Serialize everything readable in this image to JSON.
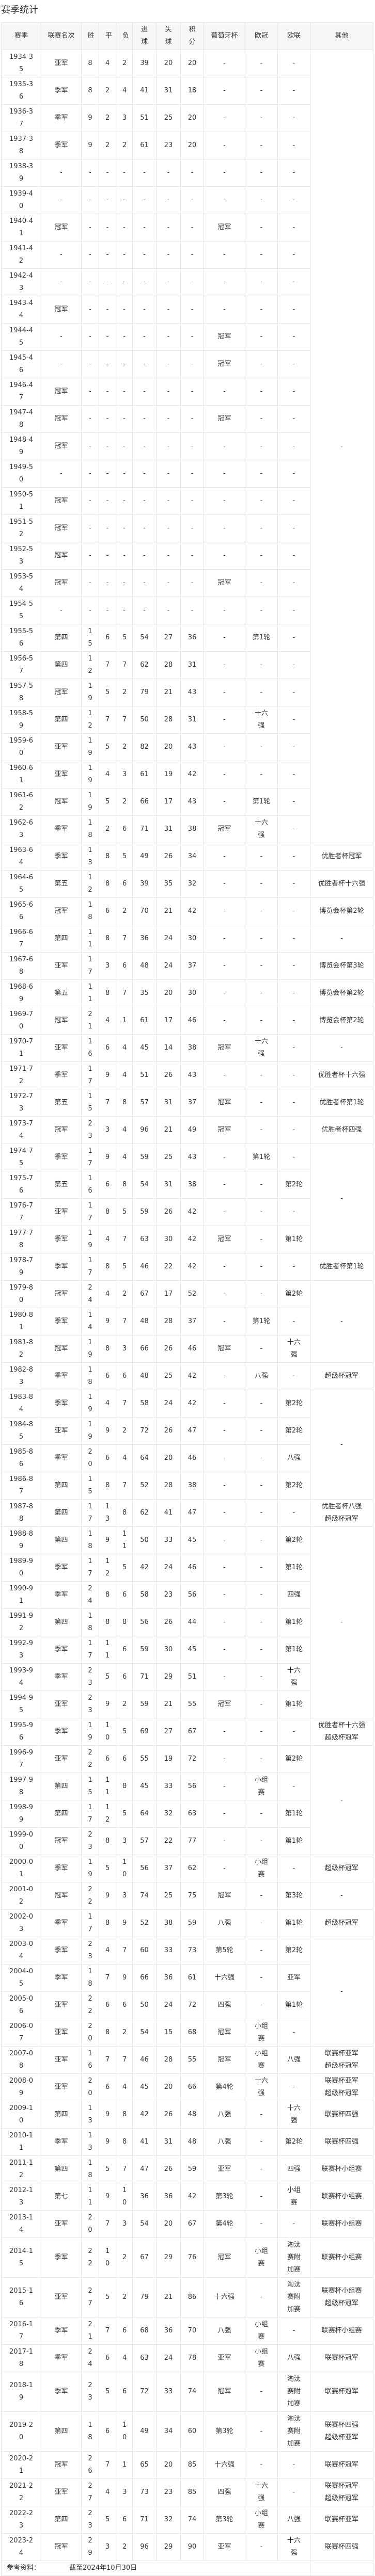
{
  "page_title": "赛季统计",
  "columns": [
    "赛季",
    "联赛名次",
    "胜",
    "平",
    "负",
    "进球",
    "失球",
    "积分",
    "葡萄牙杯",
    "欧冠",
    "欧联",
    "其他"
  ],
  "rows": [
    [
      "1934-35",
      "亚军",
      "8",
      "4",
      "2",
      "39",
      "20",
      "20",
      "-",
      "-",
      "-",
      [
        "-"
      ]
    ],
    [
      "1935-36",
      "季军",
      "8",
      "2",
      "4",
      "41",
      "31",
      "18",
      "-",
      "-",
      "-",
      null
    ],
    [
      "1936-37",
      "季军",
      "9",
      "2",
      "3",
      "51",
      "25",
      "20",
      "-",
      "-",
      "-",
      null
    ],
    [
      "1937-38",
      "季军",
      "9",
      "2",
      "2",
      "61",
      "23",
      "20",
      "-",
      "-",
      "-",
      null
    ],
    [
      "1938-39",
      "-",
      "-",
      "-",
      "-",
      "-",
      "-",
      "-",
      "-",
      "-",
      "-",
      null
    ],
    [
      "1939-40",
      "-",
      "-",
      "-",
      "-",
      "-",
      "-",
      "-",
      "-",
      "-",
      "-",
      null
    ],
    [
      "1940-41",
      "冠军",
      "-",
      "-",
      "-",
      "-",
      "-",
      "-",
      "冠军",
      "-",
      "-",
      null
    ],
    [
      "1941-42",
      "-",
      "-",
      "-",
      "-",
      "-",
      "-",
      "-",
      "-",
      "-",
      "-",
      null
    ],
    [
      "1942-43",
      "-",
      "-",
      "-",
      "-",
      "-",
      "-",
      "-",
      "-",
      "-",
      "-",
      null
    ],
    [
      "1943-44",
      "冠军",
      "-",
      "-",
      "-",
      "-",
      "-",
      "-",
      "-",
      "-",
      "-",
      null
    ],
    [
      "1944-45",
      "-",
      "-",
      "-",
      "-",
      "-",
      "-",
      "-",
      "冠军",
      "-",
      "-",
      null
    ],
    [
      "1945-46",
      "-",
      "-",
      "-",
      "-",
      "-",
      "-",
      "-",
      "冠军",
      "-",
      "-",
      null
    ],
    [
      "1946-47",
      "冠军",
      "-",
      "-",
      "-",
      "-",
      "-",
      "-",
      "-",
      "-",
      "-",
      null
    ],
    [
      "1947-48",
      "冠军",
      "-",
      "-",
      "-",
      "-",
      "-",
      "-",
      "冠军",
      "-",
      "-",
      null
    ],
    [
      "1948-49",
      "冠军",
      "-",
      "-",
      "-",
      "-",
      "-",
      "-",
      "-",
      "-",
      "-",
      null
    ],
    [
      "1949-50",
      "-",
      "-",
      "-",
      "-",
      "-",
      "-",
      "-",
      "-",
      "-",
      "-",
      null
    ],
    [
      "1950-51",
      "冠军",
      "-",
      "-",
      "-",
      "-",
      "-",
      "-",
      "-",
      "-",
      "-",
      null
    ],
    [
      "1951-52",
      "冠军",
      "-",
      "-",
      "-",
      "-",
      "-",
      "-",
      "-",
      "-",
      "-",
      null
    ],
    [
      "1952-53",
      "冠军",
      "-",
      "-",
      "-",
      "-",
      "-",
      "-",
      "-",
      "-",
      "-",
      null
    ],
    [
      "1953-54",
      "冠军",
      "-",
      "-",
      "-",
      "-",
      "-",
      "-",
      "冠军",
      "-",
      "-",
      null
    ],
    [
      "1954-55",
      "-",
      "-",
      "-",
      "-",
      "-",
      "-",
      "-",
      "-",
      "-",
      "-",
      null
    ],
    [
      "1955-56",
      "第四",
      "15",
      "6",
      "5",
      "54",
      "27",
      "36",
      "-",
      "第1轮",
      "-",
      null
    ],
    [
      "1956-57",
      "第四",
      "12",
      "7",
      "7",
      "62",
      "28",
      "31",
      "-",
      "-",
      "-",
      null
    ],
    [
      "1957-58",
      "冠军",
      "19",
      "5",
      "2",
      "79",
      "21",
      "43",
      "-",
      "-",
      "-",
      null
    ],
    [
      "1958-59",
      "第四",
      "12",
      "7",
      "7",
      "50",
      "28",
      "31",
      "-",
      "十六强",
      "-",
      null
    ],
    [
      "1959-60",
      "亚军",
      "19",
      "5",
      "2",
      "82",
      "20",
      "43",
      "-",
      "-",
      "-",
      null
    ],
    [
      "1960-61",
      "亚军",
      "19",
      "4",
      "3",
      "61",
      "19",
      "42",
      "-",
      "-",
      "-",
      null
    ],
    [
      "1961-62",
      "冠军",
      "19",
      "5",
      "2",
      "66",
      "17",
      "43",
      "-",
      "第1轮",
      "-",
      null
    ],
    [
      "1962-63",
      "季军",
      "18",
      "2",
      "6",
      "71",
      "31",
      "38",
      "冠军",
      "十六强",
      "-",
      null
    ],
    [
      "1963-64",
      "季军",
      "13",
      "8",
      "5",
      "49",
      "26",
      "34",
      "-",
      "-",
      "-",
      [
        "优胜者杯冠军"
      ]
    ],
    [
      "1964-65",
      "第五",
      "12",
      "8",
      "6",
      "39",
      "35",
      "32",
      "-",
      "-",
      "-",
      [
        "优胜者杯十六强"
      ]
    ],
    [
      "1965-66",
      "冠军",
      "18",
      "6",
      "2",
      "70",
      "21",
      "42",
      "-",
      "-",
      "-",
      [
        "博览会杯第2轮"
      ]
    ],
    [
      "1966-67",
      "第四",
      "11",
      "8",
      "7",
      "36",
      "24",
      "30",
      "-",
      "-",
      "-",
      [
        "-"
      ]
    ],
    [
      "1967-68",
      "亚军",
      "17",
      "3",
      "6",
      "48",
      "24",
      "37",
      "-",
      "-",
      "-",
      [
        "博览会杯第3轮"
      ]
    ],
    [
      "1968-69",
      "第五",
      "11",
      "8",
      "7",
      "35",
      "20",
      "30",
      "-",
      "-",
      "-",
      [
        "博览会杯第2轮"
      ]
    ],
    [
      "1969-70",
      "冠军",
      "21",
      "4",
      "1",
      "61",
      "17",
      "46",
      "-",
      "-",
      "-",
      [
        "博览会杯第2轮"
      ]
    ],
    [
      "1970-71",
      "亚军",
      "16",
      "6",
      "4",
      "45",
      "14",
      "38",
      "冠军",
      "十六强",
      "-",
      [
        "-"
      ]
    ],
    [
      "1971-72",
      "季军",
      "17",
      "9",
      "4",
      "51",
      "26",
      "43",
      "-",
      "-",
      "-",
      [
        "优胜者杯十六强"
      ]
    ],
    [
      "1972-73",
      "第五",
      "15",
      "7",
      "8",
      "57",
      "31",
      "37",
      "冠军",
      "-",
      "-",
      [
        "优胜者杯第1轮"
      ]
    ],
    [
      "1973-74",
      "冠军",
      "23",
      "3",
      "4",
      "96",
      "21",
      "49",
      "冠军",
      "-",
      "-",
      [
        "优胜者杯四强"
      ]
    ],
    [
      "1974-75",
      "季军",
      "17",
      "9",
      "4",
      "59",
      "25",
      "43",
      "-",
      "第1轮",
      "-",
      [
        "-"
      ]
    ],
    [
      "1975-76",
      "第五",
      "16",
      "6",
      "8",
      "54",
      "31",
      "38",
      "-",
      "-",
      "第2轮",
      null
    ],
    [
      "1976-77",
      "亚军",
      "17",
      "8",
      "5",
      "59",
      "26",
      "42",
      "-",
      "-",
      "-",
      null
    ],
    [
      "1977-78",
      "季军",
      "19",
      "4",
      "7",
      "63",
      "30",
      "42",
      "冠军",
      "-",
      "第1轮",
      null
    ],
    [
      "1978-79",
      "季军",
      "17",
      "8",
      "5",
      "46",
      "22",
      "42",
      "-",
      "-",
      "-",
      [
        "优胜者杯第1轮"
      ]
    ],
    [
      "1979-80",
      "冠军",
      "24",
      "4",
      "2",
      "67",
      "17",
      "52",
      "-",
      "-",
      "第2轮",
      [
        "-"
      ]
    ],
    [
      "1980-81",
      "季军",
      "14",
      "9",
      "7",
      "48",
      "28",
      "37",
      "-",
      "第1轮",
      "-",
      null
    ],
    [
      "1981-82",
      "冠军",
      "19",
      "8",
      "3",
      "66",
      "26",
      "46",
      "冠军",
      "-",
      "十六强",
      null
    ],
    [
      "1982-83",
      "季军",
      "18",
      "6",
      "6",
      "48",
      "25",
      "42",
      "-",
      "八强",
      "-",
      [
        "超级杯冠军"
      ]
    ],
    [
      "1983-84",
      "季军",
      "19",
      "4",
      "7",
      "58",
      "24",
      "42",
      "-",
      "-",
      "第2轮",
      [
        "-"
      ]
    ],
    [
      "1984-85",
      "亚军",
      "19",
      "9",
      "2",
      "72",
      "26",
      "47",
      "-",
      "-",
      "第2轮",
      null
    ],
    [
      "1985-86",
      "季军",
      "20",
      "6",
      "4",
      "64",
      "20",
      "46",
      "-",
      "-",
      "八强",
      null
    ],
    [
      "1986-87",
      "第四",
      "15",
      "8",
      "7",
      "52",
      "28",
      "38",
      "-",
      "-",
      "第2轮",
      null
    ],
    [
      "1987-88",
      "第四",
      "17",
      "13",
      "8",
      "62",
      "41",
      "47",
      "-",
      "-",
      "-",
      [
        "优胜者杯八强",
        "超级杯冠军"
      ]
    ],
    [
      "1988-89",
      "第四",
      "18",
      "9",
      "11",
      "50",
      "33",
      "45",
      "-",
      "-",
      "第2轮",
      [
        "-"
      ]
    ],
    [
      "1989-90",
      "季军",
      "17",
      "12",
      "5",
      "42",
      "24",
      "46",
      "-",
      "-",
      "第1轮",
      null
    ],
    [
      "1990-91",
      "季军",
      "24",
      "8",
      "6",
      "58",
      "23",
      "56",
      "-",
      "-",
      "四强",
      null
    ],
    [
      "1991-92",
      "第四",
      "18",
      "8",
      "8",
      "56",
      "26",
      "44",
      "-",
      "-",
      "第1轮",
      null
    ],
    [
      "1992-93",
      "季军",
      "17",
      "11",
      "6",
      "59",
      "30",
      "45",
      "-",
      "-",
      "第1轮",
      null
    ],
    [
      "1993-94",
      "季军",
      "23",
      "5",
      "6",
      "71",
      "29",
      "51",
      "-",
      "-",
      "十六强",
      null
    ],
    [
      "1994-95",
      "亚军",
      "23",
      "9",
      "2",
      "59",
      "21",
      "55",
      "冠军",
      "-",
      "第1轮",
      null
    ],
    [
      "1995-96",
      "季军",
      "19",
      "10",
      "5",
      "69",
      "27",
      "67",
      "-",
      "-",
      "-",
      [
        "优胜者杯十六强",
        "超级杯冠军"
      ]
    ],
    [
      "1996-97",
      "亚军",
      "22",
      "6",
      "6",
      "55",
      "19",
      "72",
      "-",
      "-",
      "第2轮",
      [
        "-"
      ]
    ],
    [
      "1997-98",
      "第四",
      "15",
      "11",
      "8",
      "45",
      "33",
      "56",
      "-",
      "小组赛",
      "-",
      null
    ],
    [
      "1998-99",
      "第四",
      "17",
      "12",
      "5",
      "64",
      "32",
      "63",
      "-",
      "-",
      "第1轮",
      null
    ],
    [
      "1999-00",
      "冠军",
      "23",
      "8",
      "3",
      "57",
      "22",
      "77",
      "-",
      "-",
      "第1轮",
      null
    ],
    [
      "2000-01",
      "季军",
      "19",
      "5",
      "10",
      "56",
      "37",
      "62",
      "-",
      "小组赛",
      "-",
      [
        "超级杯冠军"
      ]
    ],
    [
      "2001-02",
      "冠军",
      "22",
      "9",
      "3",
      "74",
      "25",
      "75",
      "冠军",
      "-",
      "第3轮",
      [
        "-"
      ]
    ],
    [
      "2002-03",
      "季军",
      "17",
      "8",
      "9",
      "52",
      "38",
      "59",
      "八强",
      "-",
      "第1轮",
      [
        "超级杯冠军"
      ]
    ],
    [
      "2003-04",
      "季军",
      "23",
      "4",
      "7",
      "60",
      "33",
      "73",
      "第5轮",
      "-",
      "第2轮",
      [
        "-"
      ]
    ],
    [
      "2004-05",
      "季军",
      "18",
      "7",
      "9",
      "66",
      "36",
      "61",
      "十六强",
      "-",
      "亚军",
      null
    ],
    [
      "2005-06",
      "亚军",
      "22",
      "6",
      "6",
      "50",
      "24",
      "72",
      "四强",
      "-",
      "第1轮",
      null
    ],
    [
      "2006-07",
      "亚军",
      "20",
      "8",
      "2",
      "54",
      "15",
      "68",
      "冠军",
      "小组赛",
      "-",
      null
    ],
    [
      "2007-08",
      "亚军",
      "16",
      "7",
      "7",
      "46",
      "28",
      "55",
      "冠军",
      "小组赛",
      "八强",
      [
        "联赛杯亚军",
        "超级杯冠军"
      ]
    ],
    [
      "2008-09",
      "亚军",
      "20",
      "6",
      "4",
      "45",
      "20",
      "66",
      "第4轮",
      "十六强",
      "-",
      [
        "联赛杯亚军",
        "超级杯冠军"
      ]
    ],
    [
      "2009-10",
      "第四",
      "13",
      "9",
      "8",
      "42",
      "26",
      "48",
      "八强",
      "-",
      "十六强",
      [
        "联赛杯四强"
      ]
    ],
    [
      "2010-11",
      "季军",
      "13",
      "9",
      "8",
      "41",
      "31",
      "48",
      "八强",
      "-",
      "第2轮",
      [
        "联赛杯四强"
      ]
    ],
    [
      "2011-12",
      "第四",
      "18",
      "5",
      "7",
      "47",
      "26",
      "59",
      "亚军",
      "-",
      "四强",
      [
        "联赛杯小组赛"
      ]
    ],
    [
      "2012-13",
      "第七",
      "11",
      "9",
      "10",
      "36",
      "36",
      "42",
      "第3轮",
      "-",
      "小组赛",
      [
        "联赛杯小组赛"
      ]
    ],
    [
      "2013-14",
      "亚军",
      "20",
      "7",
      "3",
      "54",
      "20",
      "67",
      "第4轮",
      "-",
      "-",
      [
        "联赛杯小组赛"
      ]
    ],
    [
      "2014-15",
      "季军",
      "22",
      "10",
      "2",
      "67",
      "29",
      "76",
      "冠军",
      "小组赛",
      "淘汰赛附加赛",
      [
        "联赛杯小组赛"
      ]
    ],
    [
      "2015-16",
      "亚军",
      "27",
      "5",
      "2",
      "79",
      "21",
      "86",
      "十六强",
      "-",
      "淘汰赛附加赛",
      [
        "联赛杯小组赛",
        "超级杯冠军"
      ]
    ],
    [
      "2016-17",
      "季军",
      "21",
      "7",
      "6",
      "68",
      "36",
      "70",
      "八强",
      "小组赛",
      "-",
      [
        "联赛杯小组赛"
      ]
    ],
    [
      "2017-18",
      "季军",
      "24",
      "6",
      "4",
      "63",
      "24",
      "78",
      "亚军",
      "小组赛",
      "八强",
      [
        "联赛杯冠军"
      ]
    ],
    [
      "2018-19",
      "季军",
      "23",
      "5",
      "6",
      "72",
      "33",
      "74",
      "冠军",
      "-",
      "淘汰赛附加赛",
      [
        "联赛杯冠军"
      ]
    ],
    [
      "2019-20",
      "第四",
      "18",
      "6",
      "10",
      "49",
      "34",
      "60",
      "第3轮",
      "-",
      "淘汰赛附加赛",
      [
        "联赛杯四强",
        "超级杯亚军"
      ]
    ],
    [
      "2020-21",
      "冠军",
      "26",
      "7",
      "1",
      "65",
      "20",
      "85",
      "十六强",
      "-",
      "-",
      [
        "联赛杯冠军"
      ]
    ],
    [
      "2021-22",
      "亚军",
      "27",
      "4",
      "3",
      "73",
      "23",
      "85",
      "四强",
      "十六强",
      "-",
      [
        "联赛杯冠军",
        "超级杯冠军"
      ]
    ],
    [
      "2022-23",
      "第四",
      "23",
      "5",
      "6",
      "71",
      "32",
      "74",
      "第3轮",
      "小组赛",
      "八强",
      [
        "联赛杯亚军"
      ]
    ],
    [
      "2023-24",
      "冠军",
      "29",
      "3",
      "2",
      "96",
      "29",
      "90",
      "亚军",
      "-",
      "十六强",
      [
        "联赛杯四强"
      ]
    ]
  ],
  "footer": {
    "reference_label": "参考资料：",
    "as_of": "截至2024年10月30日"
  },
  "colors": {
    "border": "#e6e6e6",
    "header_bg": "#f7f7f7",
    "text": "#333333"
  }
}
